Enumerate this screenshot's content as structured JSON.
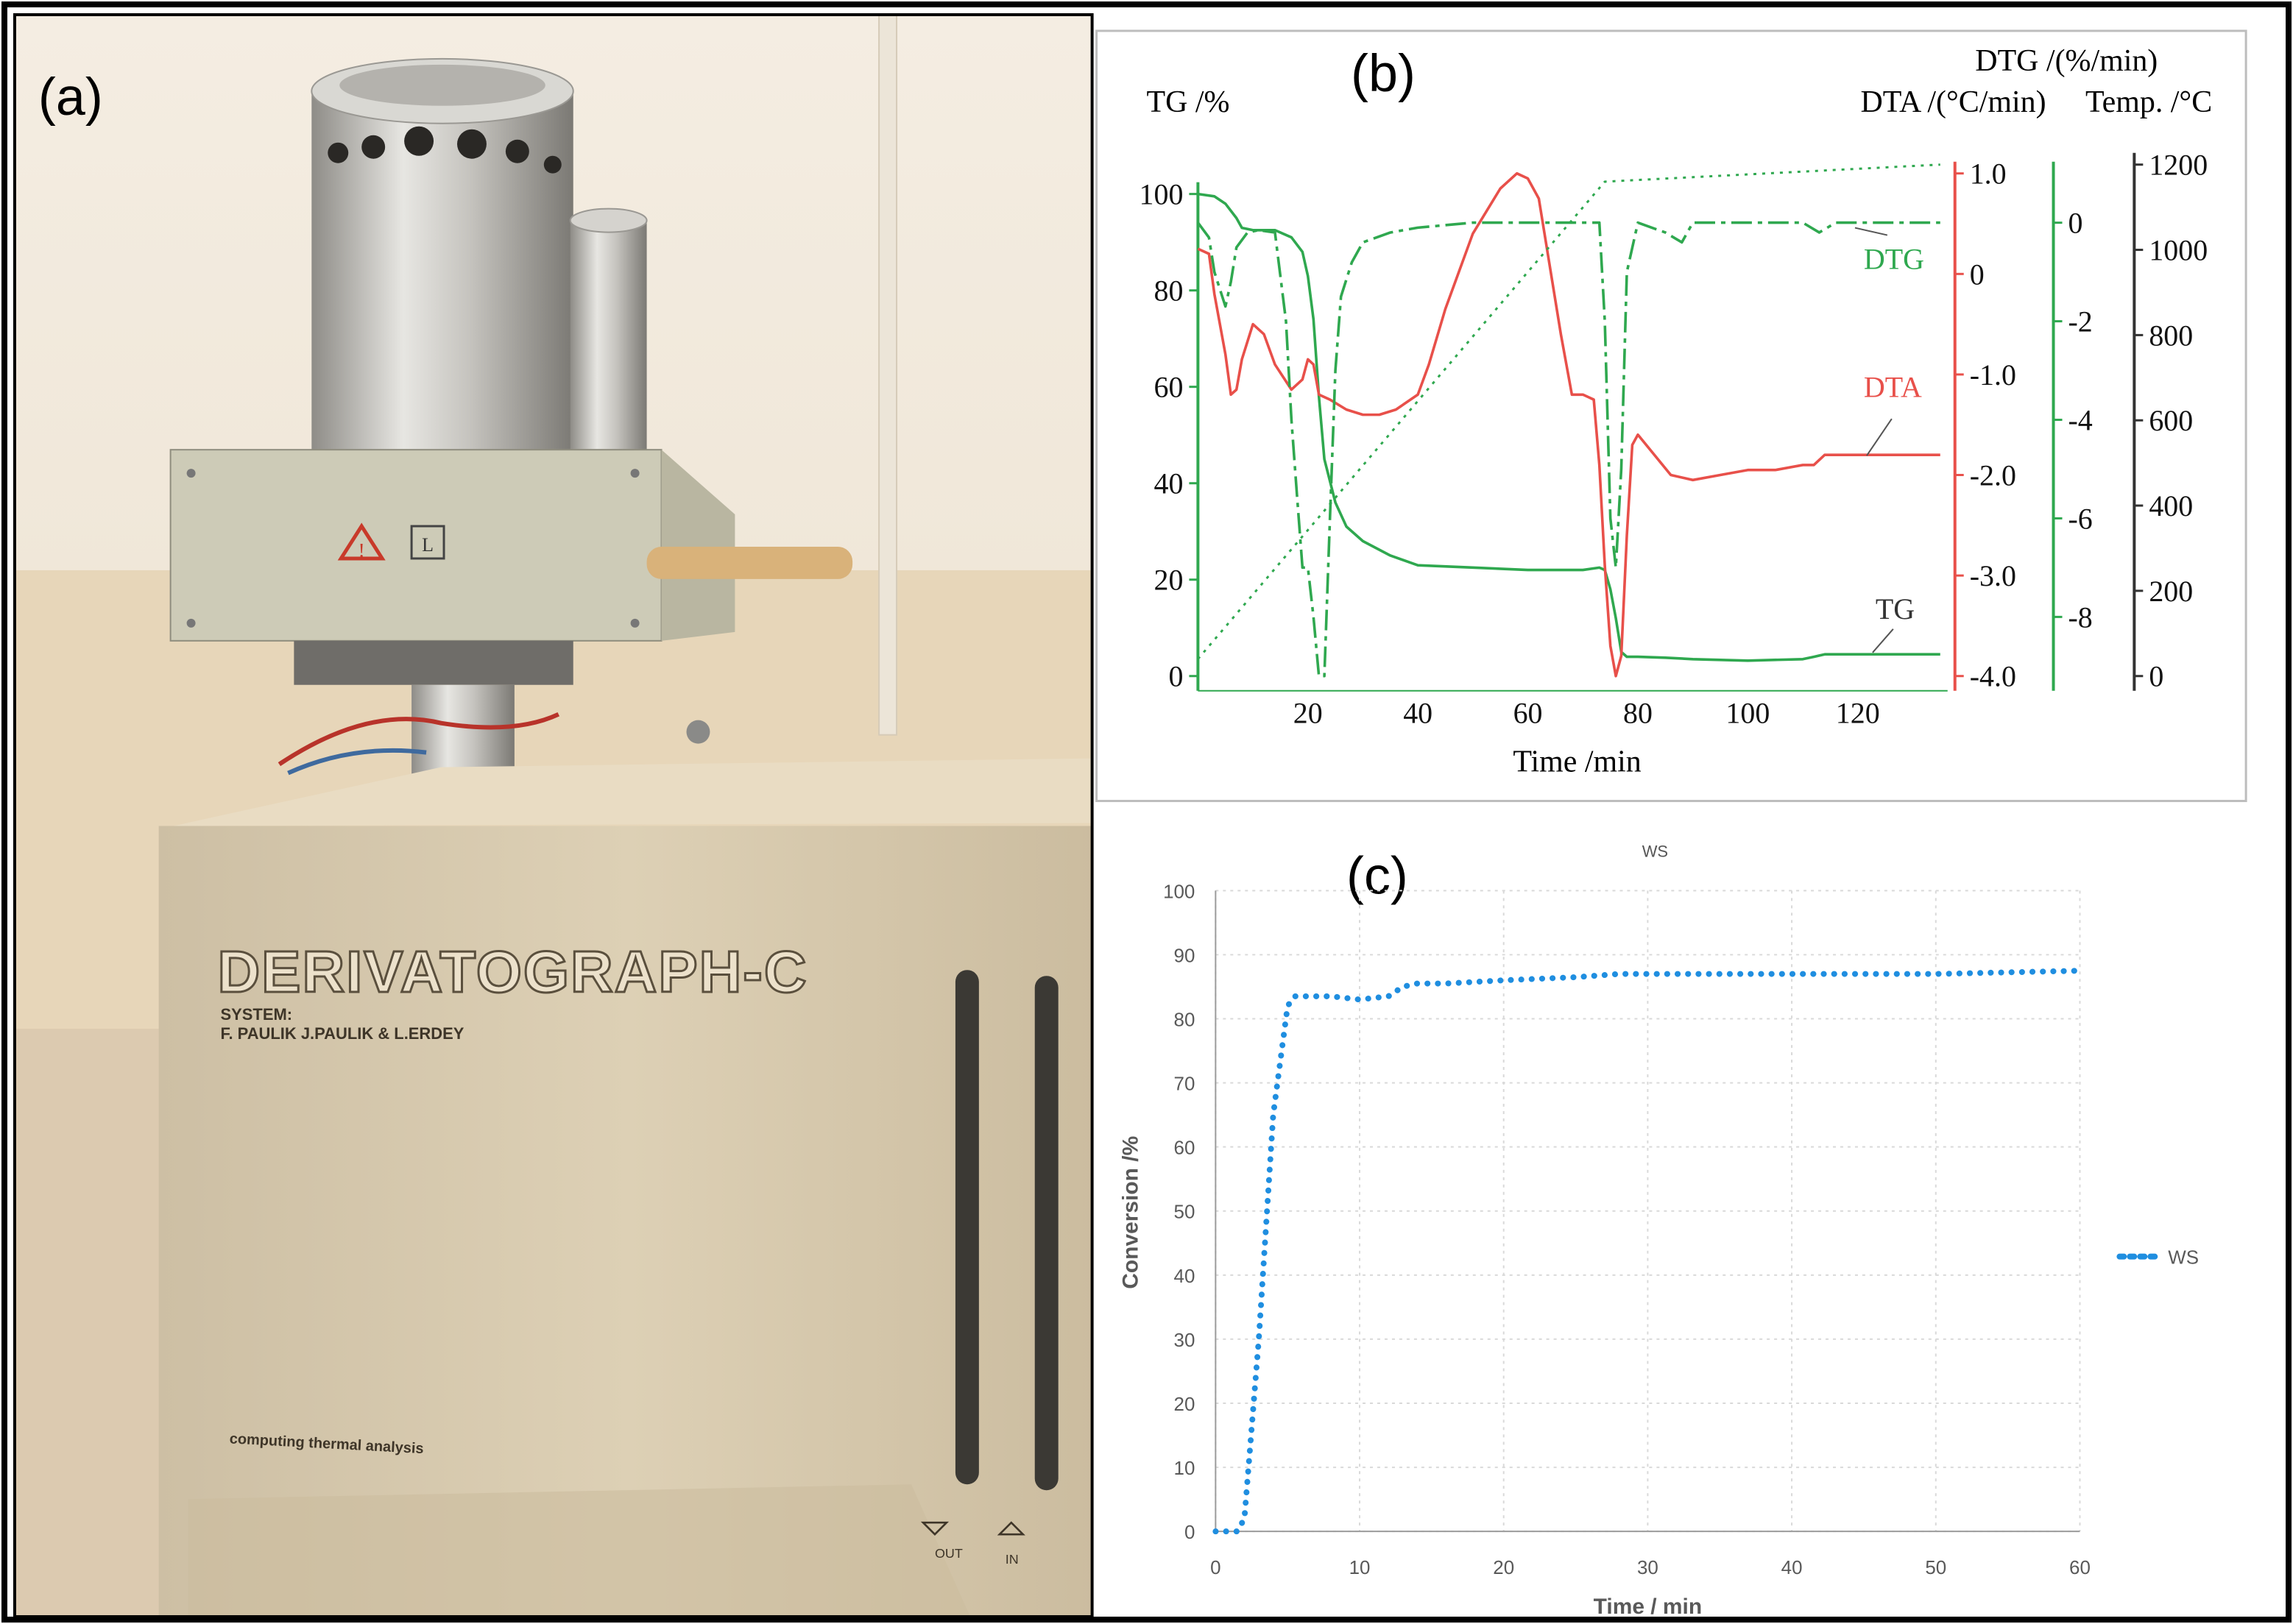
{
  "panel_a": {
    "label": "(a)",
    "brand": "DERIVATOGRAPH-C",
    "system_line1": "SYSTEM:",
    "system_line2": "F. PAULIK  J.PAULIK & L.ERDEY",
    "caption": "computing thermal analysis",
    "label_box": "L",
    "out_label": "OUT",
    "in_label": "IN",
    "colors": {
      "stainless": "#b8b6b0",
      "cabinet": "#d8c9ad",
      "wall": "#f2e6d3",
      "warning": "#c83a2a"
    }
  },
  "chart_data": [
    {
      "type": "line",
      "panel_label": "(b)",
      "xlabel": "Time /min",
      "xlim": [
        0,
        135
      ],
      "xticks": [
        20,
        40,
        60,
        80,
        100,
        120
      ],
      "axes": [
        {
          "id": "tg",
          "label": "TG /%",
          "color": "#2fa84f",
          "ylim": [
            0,
            100
          ],
          "ticks": [
            0,
            20,
            40,
            60,
            80,
            100
          ]
        },
        {
          "id": "dta",
          "label": "DTA /(°C/min)",
          "color": "#e8504a",
          "ylim": [
            -4.0,
            1.0
          ],
          "ticks": [
            1.0,
            0,
            -1.0,
            -2.0,
            -3.0,
            -4.0
          ]
        },
        {
          "id": "dtg",
          "label": "DTG /(%/min)",
          "color": "#2fa84f",
          "ylim": [
            -9.2,
            1.0
          ],
          "ticks": [
            0,
            -2,
            -4,
            -6,
            -8
          ]
        },
        {
          "id": "temp",
          "label": "Temp. /°C",
          "color": "#333333",
          "ylim": [
            0,
            1200
          ],
          "ticks": [
            0,
            200,
            400,
            600,
            800,
            1000,
            1200
          ]
        }
      ],
      "series": [
        {
          "name": "TG",
          "axis": "tg",
          "color": "#2fa84f",
          "style": "solid",
          "x": [
            0,
            3,
            5,
            7,
            8,
            10,
            14,
            17,
            19,
            20,
            21,
            22,
            23,
            25,
            27,
            30,
            35,
            40,
            50,
            60,
            70,
            73,
            74,
            75,
            76,
            77,
            78,
            80,
            85,
            90,
            100,
            110,
            112,
            114,
            120,
            125,
            135
          ],
          "y": [
            100,
            99.5,
            98,
            95,
            93,
            92.5,
            92.5,
            91,
            88,
            83,
            74,
            58,
            45,
            36,
            31,
            28,
            25,
            23,
            22.5,
            22,
            22,
            22.5,
            22,
            18,
            12,
            5,
            4,
            4,
            3.8,
            3.5,
            3.2,
            3.5,
            4,
            4.5,
            4.5,
            4.5,
            4.5
          ]
        },
        {
          "name": "DTA",
          "axis": "dta",
          "color": "#e8504a",
          "style": "solid",
          "x": [
            0,
            2,
            3,
            5,
            6,
            7,
            8,
            10,
            12,
            14,
            17,
            19,
            20,
            21,
            22,
            24,
            27,
            30,
            33,
            36,
            40,
            42,
            45,
            50,
            55,
            58,
            60,
            62,
            66,
            68,
            70,
            72,
            73,
            74,
            75,
            76,
            77,
            78,
            79,
            80,
            83,
            86,
            90,
            95,
            100,
            105,
            110,
            112,
            114,
            118,
            122,
            128,
            135
          ],
          "y": [
            0.25,
            0.2,
            -0.2,
            -0.8,
            -1.2,
            -1.15,
            -0.85,
            -0.5,
            -0.6,
            -0.9,
            -1.15,
            -1.05,
            -0.85,
            -0.9,
            -1.2,
            -1.25,
            -1.35,
            -1.4,
            -1.4,
            -1.35,
            -1.2,
            -0.9,
            -0.35,
            0.4,
            0.85,
            1.0,
            0.95,
            0.75,
            -0.6,
            -1.2,
            -1.2,
            -1.25,
            -1.9,
            -2.9,
            -3.7,
            -4.0,
            -3.8,
            -2.6,
            -1.7,
            -1.6,
            -1.8,
            -2.0,
            -2.05,
            -2.0,
            -1.95,
            -1.95,
            -1.9,
            -1.9,
            -1.8,
            -1.8,
            -1.8,
            -1.8,
            -1.8
          ]
        },
        {
          "name": "DTG",
          "axis": "dtg",
          "color": "#2fa84f",
          "style": "dashdot",
          "x": [
            0,
            2,
            3,
            5,
            6,
            7,
            9,
            11,
            14,
            16,
            17,
            18,
            19,
            20,
            21,
            22,
            23,
            24,
            25,
            26,
            28,
            30,
            35,
            40,
            50,
            60,
            70,
            72,
            73,
            74,
            75,
            76,
            77,
            78,
            80,
            85,
            88,
            90,
            95,
            110,
            113,
            116,
            120,
            125,
            135
          ],
          "y": [
            0,
            -0.3,
            -1,
            -1.7,
            -1.2,
            -0.5,
            -0.2,
            -0.15,
            -0.2,
            -2,
            -4,
            -5.5,
            -7,
            -7,
            -8,
            -9.2,
            -9.2,
            -6,
            -3,
            -1.5,
            -0.8,
            -0.4,
            -0.2,
            -0.1,
            0,
            0,
            0,
            0,
            0,
            -2,
            -6,
            -7,
            -5,
            -1,
            0,
            -0.2,
            -0.4,
            0,
            0,
            0,
            -0.2,
            0,
            0,
            0,
            0
          ]
        },
        {
          "name": "Temp",
          "axis": "temp",
          "color": "#2fa84f",
          "style": "dotted",
          "x": [
            0,
            74,
            135
          ],
          "y": [
            40,
            1160,
            1200
          ]
        }
      ],
      "series_labels": [
        {
          "name": "DTG",
          "color": "#2fa84f"
        },
        {
          "name": "DTA",
          "color": "#e8504a"
        },
        {
          "name": "TG",
          "color": "#333333"
        }
      ]
    },
    {
      "type": "line",
      "panel_label": "(c)",
      "title": "WS",
      "xlabel": "Time / min",
      "ylabel": "Conversion /%",
      "xlim": [
        0,
        60
      ],
      "ylim": [
        0,
        100
      ],
      "xticks": [
        0,
        10,
        20,
        30,
        40,
        50,
        60
      ],
      "yticks": [
        0,
        10,
        20,
        30,
        40,
        50,
        60,
        70,
        80,
        90,
        100
      ],
      "grid": true,
      "legend": "right",
      "series": [
        {
          "name": "WS",
          "color": "#1f8ee0",
          "style": "dotted",
          "x": [
            0,
            1.5,
            2,
            3,
            4,
            5,
            5.5,
            6,
            8,
            10,
            12,
            13,
            14,
            16,
            20,
            25,
            28,
            30,
            40,
            50,
            60
          ],
          "y": [
            0,
            0,
            2,
            30,
            65,
            82,
            83.5,
            83.5,
            83.5,
            83,
            83.5,
            85,
            85.5,
            85.5,
            86,
            86.5,
            87,
            87,
            87,
            87,
            87.5
          ]
        }
      ]
    }
  ]
}
